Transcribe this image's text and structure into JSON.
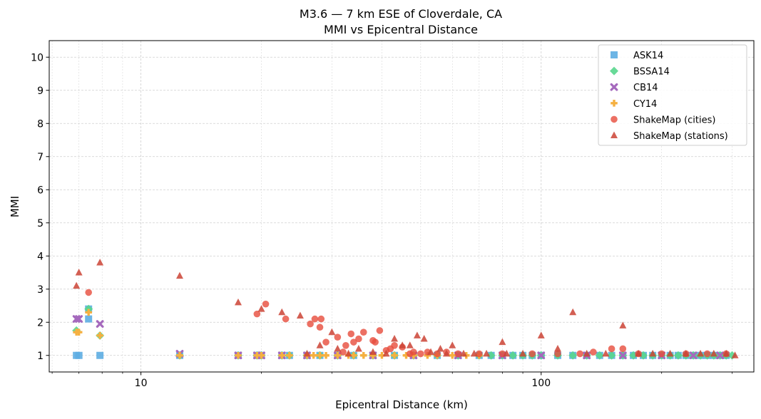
{
  "chart_data": {
    "type": "scatter",
    "title": "M3.6 — 7 km ESE of Cloverdale, CA",
    "subtitle": "MMI vs Epicentral Distance",
    "xlabel": "Epicentral Distance (km)",
    "ylabel": "MMI",
    "xscale": "log",
    "xlim": [
      5.9,
      340
    ],
    "ylim": [
      0.5,
      10.5
    ],
    "x_ticks": [
      10,
      100
    ],
    "x_tick_labels": [
      "10",
      "100"
    ],
    "y_ticks": [
      1,
      2,
      3,
      4,
      5,
      6,
      7,
      8,
      9,
      10
    ],
    "y_tick_labels": [
      "1",
      "2",
      "3",
      "4",
      "5",
      "6",
      "7",
      "8",
      "9",
      "10"
    ],
    "grid": true,
    "legend_position": "top-right",
    "series": [
      {
        "name": "ASK14",
        "marker": "square",
        "color": "#5dade2",
        "points": [
          [
            6.9,
            1
          ],
          [
            7.0,
            1
          ],
          [
            7.4,
            2.1
          ],
          [
            7.4,
            2.4
          ],
          [
            7.9,
            1
          ],
          [
            12.5,
            1
          ],
          [
            17.5,
            1
          ],
          [
            19.5,
            1
          ],
          [
            20,
            1
          ],
          [
            22.5,
            1
          ],
          [
            23.5,
            1
          ],
          [
            26,
            1
          ],
          [
            28,
            1
          ],
          [
            31,
            1
          ],
          [
            34,
            1
          ],
          [
            38,
            1
          ],
          [
            43,
            1
          ],
          [
            48,
            1
          ],
          [
            55,
            1
          ],
          [
            62,
            1
          ],
          [
            70,
            1
          ],
          [
            75,
            1
          ],
          [
            80,
            1
          ],
          [
            85,
            1
          ],
          [
            90,
            1
          ],
          [
            95,
            1
          ],
          [
            100,
            1
          ],
          [
            110,
            1
          ],
          [
            120,
            1
          ],
          [
            130,
            1
          ],
          [
            140,
            1
          ],
          [
            150,
            1
          ],
          [
            160,
            1
          ],
          [
            170,
            1
          ],
          [
            180,
            1
          ],
          [
            190,
            1
          ],
          [
            200,
            1
          ],
          [
            210,
            1
          ],
          [
            220,
            1
          ],
          [
            230,
            1
          ],
          [
            240,
            1
          ],
          [
            250,
            1
          ],
          [
            260,
            1
          ],
          [
            270,
            1
          ],
          [
            280,
            1
          ],
          [
            290,
            1
          ]
        ]
      },
      {
        "name": "BSSA14",
        "marker": "diamond",
        "color": "#58d68d",
        "points": [
          [
            6.9,
            1.75
          ],
          [
            7.4,
            2.4
          ],
          [
            7.9,
            1.6
          ],
          [
            12.5,
            1
          ],
          [
            17.5,
            1
          ],
          [
            19.5,
            1
          ],
          [
            20,
            1
          ],
          [
            22.5,
            1
          ],
          [
            23.5,
            1
          ],
          [
            26,
            1
          ],
          [
            28,
            1
          ],
          [
            31,
            1
          ],
          [
            34,
            1
          ],
          [
            38,
            1
          ],
          [
            43,
            1
          ],
          [
            48,
            1
          ],
          [
            55,
            1
          ],
          [
            62,
            1
          ],
          [
            70,
            1
          ],
          [
            75,
            1
          ],
          [
            80,
            1
          ],
          [
            85,
            1
          ],
          [
            90,
            1
          ],
          [
            95,
            1
          ],
          [
            100,
            1
          ],
          [
            110,
            1
          ],
          [
            120,
            1
          ],
          [
            130,
            1
          ],
          [
            140,
            1
          ],
          [
            150,
            1
          ],
          [
            160,
            1
          ],
          [
            170,
            1
          ],
          [
            180,
            1
          ],
          [
            190,
            1
          ],
          [
            200,
            1
          ],
          [
            210,
            1
          ],
          [
            220,
            1
          ],
          [
            230,
            1
          ],
          [
            240,
            1
          ],
          [
            250,
            1
          ],
          [
            260,
            1
          ],
          [
            270,
            1
          ],
          [
            280,
            1
          ],
          [
            290,
            1
          ],
          [
            300,
            1
          ]
        ]
      },
      {
        "name": "CB14",
        "marker": "x",
        "color": "#a569bd",
        "points": [
          [
            6.9,
            2.1
          ],
          [
            7.0,
            2.1
          ],
          [
            7.9,
            1.95
          ],
          [
            12.5,
            1.05
          ],
          [
            17.5,
            1
          ],
          [
            19.5,
            1
          ],
          [
            20,
            1
          ],
          [
            22.5,
            1
          ],
          [
            26,
            1
          ],
          [
            31,
            1
          ],
          [
            38,
            1
          ],
          [
            48,
            1
          ],
          [
            62,
            1
          ],
          [
            80,
            1
          ],
          [
            100,
            1
          ],
          [
            130,
            1
          ],
          [
            160,
            1
          ],
          [
            200,
            1
          ],
          [
            240,
            1
          ],
          [
            280,
            1
          ]
        ]
      },
      {
        "name": "CY14",
        "marker": "plus",
        "color": "#f5b041",
        "points": [
          [
            6.9,
            1.7
          ],
          [
            7.0,
            1.7
          ],
          [
            7.4,
            2.3
          ],
          [
            7.9,
            1.6
          ],
          [
            12.5,
            1
          ],
          [
            17.5,
            1
          ],
          [
            19.5,
            1
          ],
          [
            20,
            1
          ],
          [
            22.5,
            1
          ],
          [
            23.5,
            1
          ],
          [
            26,
            1
          ],
          [
            27,
            1
          ],
          [
            28,
            1
          ],
          [
            29,
            1
          ],
          [
            31,
            1
          ],
          [
            33,
            1
          ],
          [
            34,
            1
          ],
          [
            36,
            1
          ],
          [
            38,
            1
          ],
          [
            40,
            1
          ],
          [
            43,
            1
          ],
          [
            46,
            1
          ],
          [
            48,
            1
          ],
          [
            52,
            1
          ],
          [
            55,
            1
          ],
          [
            60,
            1
          ],
          [
            65,
            1
          ],
          [
            70,
            1
          ]
        ]
      },
      {
        "name": "ShakeMap (cities)",
        "marker": "circle",
        "color": "#e74c3c",
        "points": [
          [
            7.4,
            2.9
          ],
          [
            19.5,
            2.25
          ],
          [
            20.5,
            2.55
          ],
          [
            23,
            2.1
          ],
          [
            26.5,
            1.95
          ],
          [
            27.2,
            2.1
          ],
          [
            28,
            1.85
          ],
          [
            28.2,
            2.1
          ],
          [
            29,
            1.4
          ],
          [
            31,
            1.55
          ],
          [
            32,
            1.1
          ],
          [
            32.5,
            1.3
          ],
          [
            33.5,
            1.65
          ],
          [
            34,
            1.4
          ],
          [
            35,
            1.5
          ],
          [
            36,
            1.7
          ],
          [
            38,
            1.45
          ],
          [
            38.5,
            1.4
          ],
          [
            39.5,
            1.75
          ],
          [
            41,
            1.15
          ],
          [
            42,
            1.2
          ],
          [
            43,
            1.3
          ],
          [
            45,
            1.25
          ],
          [
            47,
            1.05
          ],
          [
            48,
            1.1
          ],
          [
            50,
            1.05
          ],
          [
            52,
            1.1
          ],
          [
            55,
            1.05
          ],
          [
            58,
            1.1
          ],
          [
            62,
            1.05
          ],
          [
            70,
            1.05
          ],
          [
            80,
            1.05
          ],
          [
            95,
            1.05
          ],
          [
            110,
            1.05
          ],
          [
            125,
            1.05
          ],
          [
            135,
            1.1
          ],
          [
            150,
            1.2
          ],
          [
            160,
            1.2
          ],
          [
            175,
            1.05
          ],
          [
            200,
            1.05
          ],
          [
            230,
            1.05
          ],
          [
            260,
            1.05
          ],
          [
            290,
            1.05
          ]
        ]
      },
      {
        "name": "ShakeMap (stations)",
        "marker": "triangle",
        "color": "#cb4335",
        "points": [
          [
            6.9,
            3.1
          ],
          [
            7.0,
            3.5
          ],
          [
            7.9,
            3.8
          ],
          [
            12.5,
            3.4
          ],
          [
            17.5,
            2.6
          ],
          [
            20,
            2.4
          ],
          [
            22.5,
            2.3
          ],
          [
            25,
            2.2
          ],
          [
            26,
            1.05
          ],
          [
            28,
            1.3
          ],
          [
            30,
            1.7
          ],
          [
            31,
            1.2
          ],
          [
            33,
            1.05
          ],
          [
            35,
            1.2
          ],
          [
            38,
            1.1
          ],
          [
            41,
            1.05
          ],
          [
            43,
            1.5
          ],
          [
            45,
            1.3
          ],
          [
            47,
            1.3
          ],
          [
            49,
            1.6
          ],
          [
            51,
            1.5
          ],
          [
            53,
            1.1
          ],
          [
            56,
            1.2
          ],
          [
            58,
            1.05
          ],
          [
            60,
            1.3
          ],
          [
            64,
            1.05
          ],
          [
            68,
            1.05
          ],
          [
            73,
            1.05
          ],
          [
            80,
            1.4
          ],
          [
            82,
            1.05
          ],
          [
            90,
            1.05
          ],
          [
            100,
            1.6
          ],
          [
            110,
            1.2
          ],
          [
            120,
            2.3
          ],
          [
            130,
            1.05
          ],
          [
            145,
            1.05
          ],
          [
            160,
            1.9
          ],
          [
            175,
            1.05
          ],
          [
            190,
            1.05
          ],
          [
            210,
            1.05
          ],
          [
            230,
            1.05
          ],
          [
            250,
            1.05
          ],
          [
            270,
            1.05
          ],
          [
            290,
            1.05
          ],
          [
            305,
            1.0
          ]
        ]
      }
    ]
  }
}
